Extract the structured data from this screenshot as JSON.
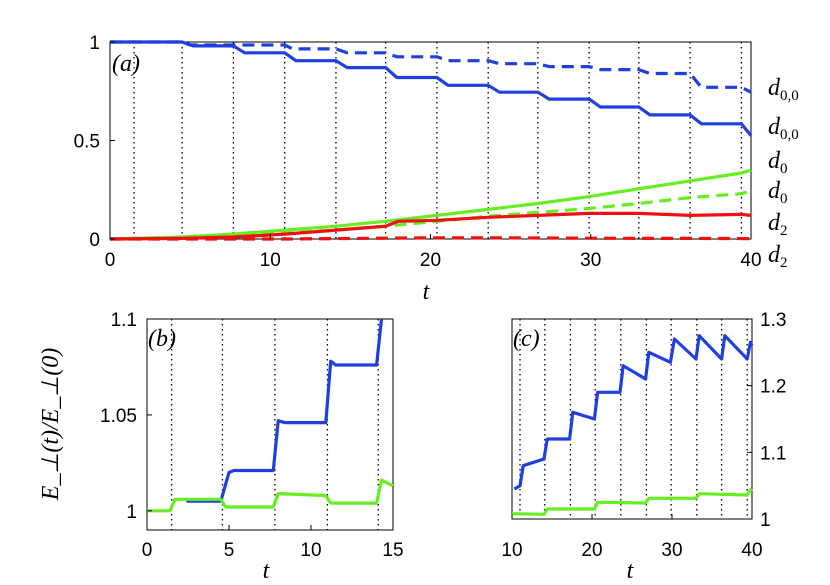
{
  "chart_data": [
    {
      "panel_label": "(a)",
      "type": "line",
      "xlabel": "t",
      "xlim": [
        0,
        40
      ],
      "ylim": [
        0,
        1
      ],
      "xticks": [
        0,
        10,
        20,
        30,
        40
      ],
      "yticks": [
        0,
        0.5,
        1
      ],
      "xtick_labels": [
        "0",
        "10",
        "20",
        "30",
        "40"
      ],
      "ytick_labels": [
        "0",
        "0.5",
        "1"
      ],
      "vlines": [
        1.5,
        4.5,
        7.7,
        10.9,
        14.1,
        17.2,
        20.4,
        23.6,
        26.7,
        29.9,
        33.0,
        36.2,
        39.4
      ],
      "series": [
        {
          "name": "d_{0,0}",
          "name_base": "d",
          "name_sub": "0,0",
          "color": "#ff0000",
          "style": "dashed-ignore",
          "skip": true
        },
        {
          "name": "d_{0,0}",
          "name_base": "d",
          "name_sub": "0,0",
          "color": "#1f3fe0",
          "style": "dashed",
          "x": [
            0,
            4.5,
            5.0,
            10.9,
            11.4,
            14.1,
            14.8,
            17.2,
            17.9,
            20.4,
            21.1,
            23.6,
            24.3,
            26.7,
            27.4,
            29.9,
            30.6,
            33.0,
            33.7,
            36.2,
            36.9,
            39.4,
            40
          ],
          "y": [
            1.0,
            1.0,
            0.985,
            0.985,
            0.965,
            0.965,
            0.945,
            0.945,
            0.925,
            0.925,
            0.905,
            0.905,
            0.89,
            0.89,
            0.875,
            0.875,
            0.86,
            0.86,
            0.84,
            0.84,
            0.77,
            0.77,
            0.745
          ]
        },
        {
          "name": "d_{0,0}",
          "name_base": "d",
          "name_sub": "0,0",
          "color": "#1f3fe0",
          "style": "solid",
          "x": [
            0,
            4.5,
            5.2,
            7.7,
            8.4,
            10.9,
            11.6,
            14.1,
            14.8,
            17.2,
            17.9,
            20.4,
            21.1,
            23.6,
            24.3,
            26.7,
            27.4,
            29.9,
            30.6,
            33.0,
            33.7,
            36.2,
            36.9,
            39.4,
            40
          ],
          "y": [
            1.0,
            1.0,
            0.98,
            0.98,
            0.945,
            0.945,
            0.905,
            0.905,
            0.87,
            0.87,
            0.82,
            0.82,
            0.78,
            0.78,
            0.745,
            0.745,
            0.71,
            0.71,
            0.67,
            0.67,
            0.63,
            0.63,
            0.585,
            0.585,
            0.525
          ]
        },
        {
          "name": "d_0",
          "name_base": "d",
          "name_sub": "0",
          "color": "#66ee22",
          "style": "solid",
          "x": [
            0,
            4.5,
            7.7,
            10.9,
            14.1,
            17.2,
            20.4,
            23.6,
            26.7,
            29.9,
            33.0,
            36.2,
            39.4,
            40
          ],
          "y": [
            0.0,
            0.01,
            0.025,
            0.045,
            0.065,
            0.09,
            0.12,
            0.15,
            0.18,
            0.215,
            0.255,
            0.295,
            0.335,
            0.35
          ]
        },
        {
          "name": "d_0",
          "name_base": "d",
          "name_sub": "0",
          "color": "#66ee22",
          "style": "dashed",
          "x": [
            0,
            4.5,
            7.7,
            10.9,
            14.1,
            17.2,
            20.4,
            23.6,
            26.7,
            29.9,
            33.0,
            36.2,
            39.4,
            40
          ],
          "y": [
            0.0,
            0.005,
            0.015,
            0.03,
            0.045,
            0.065,
            0.09,
            0.115,
            0.135,
            0.155,
            0.18,
            0.21,
            0.23,
            0.245
          ]
        },
        {
          "name": "d_2",
          "name_base": "d",
          "name_sub": "2",
          "color": "#ee1111",
          "style": "solid",
          "x": [
            0,
            4.5,
            7.7,
            10.9,
            14.1,
            17.2,
            18.0,
            20.4,
            23.6,
            26.7,
            29.9,
            33.0,
            36.2,
            39.4,
            40
          ],
          "y": [
            0.0,
            0.003,
            0.01,
            0.025,
            0.045,
            0.065,
            0.09,
            0.095,
            0.11,
            0.12,
            0.13,
            0.13,
            0.12,
            0.125,
            0.12
          ]
        },
        {
          "name": "d_2",
          "name_base": "d",
          "name_sub": "2",
          "color": "#ee1111",
          "style": "dashed",
          "x": [
            0,
            10.9,
            14.1,
            17.2,
            20.4,
            23.6,
            26.7,
            29.9,
            33.0,
            36.2,
            40
          ],
          "y": [
            0.0,
            0.0,
            0.002,
            0.004,
            0.006,
            0.006,
            0.005,
            0.004,
            0.003,
            0.003,
            0.002
          ]
        }
      ]
    },
    {
      "panel_label": "(b)",
      "type": "line",
      "xlabel": "t",
      "ylabel": "E_⊥(t)/E_⊥(0)",
      "xlim": [
        0,
        15
      ],
      "ylim": [
        0.99,
        1.1
      ],
      "xticks": [
        0,
        5,
        10,
        15
      ],
      "yticks": [
        1,
        1.05,
        1.1
      ],
      "xtick_labels": [
        "0",
        "5",
        "10",
        "15"
      ],
      "ytick_labels": [
        "1",
        "1.05",
        "1.1"
      ],
      "vlines": [
        1.5,
        4.6,
        7.8,
        11.0,
        14.1
      ],
      "series": [
        {
          "color": "#1f3fe0",
          "style": "solid",
          "x": [
            2.4,
            4.5,
            5.0,
            5.3,
            7.7,
            8.0,
            8.4,
            10.9,
            11.2,
            11.5,
            14.0,
            14.3
          ],
          "y": [
            1.005,
            1.005,
            1.02,
            1.021,
            1.021,
            1.047,
            1.046,
            1.046,
            1.078,
            1.076,
            1.076,
            1.1
          ]
        },
        {
          "color": "#66ee22",
          "style": "solid",
          "x": [
            0,
            1.4,
            1.7,
            4.5,
            4.8,
            7.7,
            8.0,
            10.9,
            11.2,
            14.0,
            14.3,
            15.0
          ],
          "y": [
            1.0,
            1.0,
            1.006,
            1.006,
            1.002,
            1.002,
            1.009,
            1.008,
            1.004,
            1.004,
            1.016,
            1.013
          ]
        }
      ]
    },
    {
      "panel_label": "(c)",
      "type": "line",
      "xlim": [
        10,
        40
      ],
      "ylim": [
        1.0,
        1.3
      ],
      "xlabel": "t",
      "xticks": [
        10,
        20,
        30,
        40
      ],
      "yticks": [
        1,
        1.1,
        1.2,
        1.3
      ],
      "xtick_labels": [
        "10",
        "20",
        "30",
        "40"
      ],
      "ytick_labels": [
        "1",
        "1.1",
        "1.2",
        "1.3"
      ],
      "vlines": [
        11.0,
        14.1,
        17.3,
        20.4,
        23.6,
        26.8,
        29.9,
        33.1,
        36.2,
        39.4
      ],
      "series": [
        {
          "color": "#1f3fe0",
          "style": "solid",
          "x": [
            10.3,
            11.0,
            11.4,
            14.0,
            14.4,
            17.2,
            17.6,
            20.3,
            20.7,
            23.5,
            23.9,
            26.7,
            27.1,
            29.8,
            30.3,
            33.0,
            33.4,
            36.2,
            36.6,
            39.4,
            39.8,
            40
          ],
          "y": [
            1.045,
            1.05,
            1.08,
            1.09,
            1.12,
            1.12,
            1.16,
            1.15,
            1.19,
            1.19,
            1.23,
            1.21,
            1.25,
            1.235,
            1.27,
            1.24,
            1.275,
            1.24,
            1.275,
            1.24,
            1.265,
            1.26
          ]
        },
        {
          "color": "#66ee22",
          "style": "solid",
          "x": [
            10,
            14.0,
            14.4,
            20.3,
            20.7,
            26.7,
            27.1,
            33.0,
            33.4,
            39.4,
            39.8,
            40
          ],
          "y": [
            1.008,
            1.007,
            1.015,
            1.015,
            1.025,
            1.024,
            1.031,
            1.031,
            1.038,
            1.036,
            1.044,
            1.042
          ]
        }
      ]
    }
  ]
}
